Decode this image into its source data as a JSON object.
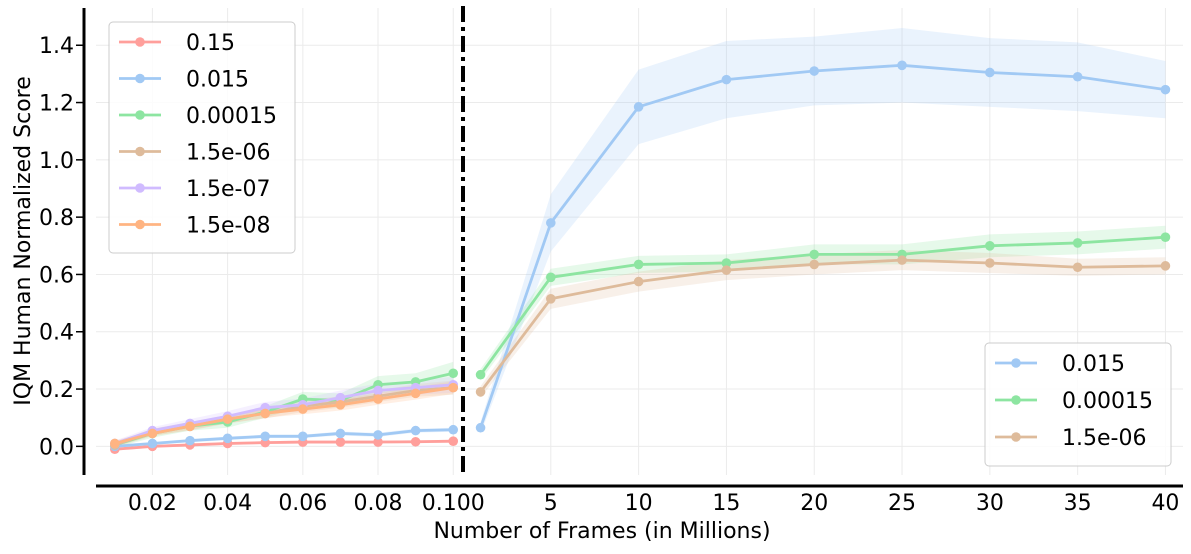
{
  "chart_data": {
    "type": "line",
    "ylabel": "IQM Human Normalized Score",
    "xlabel": "Number of Frames (in Millions)",
    "ylim": [
      -0.1,
      1.53
    ],
    "yticks": [
      "0.0",
      "0.2",
      "0.4",
      "0.6",
      "0.8",
      "1.0",
      "1.2",
      "1.4"
    ],
    "grid": true,
    "left_panel": {
      "xlim": [
        0.005,
        0.1026
      ],
      "xticks": [
        "0.02",
        "0.04",
        "0.06",
        "0.08",
        "0.100"
      ],
      "legend_position": "top-left",
      "series": [
        {
          "name": "0.15",
          "color": "#ff9f9b",
          "x": [
            0.01,
            0.02,
            0.03,
            0.04,
            0.05,
            0.06,
            0.07,
            0.08,
            0.09,
            0.1
          ],
          "y": [
            -0.01,
            0.0,
            0.005,
            0.01,
            0.013,
            0.015,
            0.015,
            0.015,
            0.016,
            0.018
          ],
          "band": [
            0.005,
            0.005,
            0.005,
            0.005,
            0.005,
            0.005,
            0.005,
            0.005,
            0.005,
            0.005
          ]
        },
        {
          "name": "0.015",
          "color": "#a1c9f4",
          "x": [
            0.01,
            0.02,
            0.03,
            0.04,
            0.05,
            0.06,
            0.07,
            0.08,
            0.09,
            0.1
          ],
          "y": [
            0.0,
            0.01,
            0.02,
            0.028,
            0.035,
            0.035,
            0.045,
            0.04,
            0.055,
            0.058
          ],
          "band": [
            0.005,
            0.005,
            0.006,
            0.006,
            0.006,
            0.006,
            0.007,
            0.007,
            0.007,
            0.007
          ]
        },
        {
          "name": "0.00015",
          "color": "#8de5a1",
          "x": [
            0.01,
            0.02,
            0.03,
            0.04,
            0.05,
            0.06,
            0.07,
            0.08,
            0.09,
            0.1
          ],
          "y": [
            0.005,
            0.045,
            0.07,
            0.085,
            0.12,
            0.165,
            0.16,
            0.215,
            0.225,
            0.255
          ],
          "band": [
            0.01,
            0.015,
            0.015,
            0.02,
            0.02,
            0.025,
            0.025,
            0.03,
            0.03,
            0.04
          ]
        },
        {
          "name": "1.5e-06",
          "color": "#debb9b",
          "x": [
            0.01,
            0.02,
            0.03,
            0.04,
            0.05,
            0.06,
            0.07,
            0.08,
            0.09,
            0.1
          ],
          "y": [
            0.005,
            0.05,
            0.07,
            0.095,
            0.115,
            0.14,
            0.155,
            0.175,
            0.195,
            0.205
          ],
          "band": [
            0.01,
            0.012,
            0.015,
            0.015,
            0.018,
            0.02,
            0.02,
            0.02,
            0.022,
            0.025
          ]
        },
        {
          "name": "1.5e-07",
          "color": "#d0bbff",
          "x": [
            0.01,
            0.02,
            0.03,
            0.04,
            0.05,
            0.06,
            0.07,
            0.08,
            0.09,
            0.1
          ],
          "y": [
            0.01,
            0.055,
            0.08,
            0.105,
            0.135,
            0.145,
            0.17,
            0.195,
            0.205,
            0.215
          ],
          "band": [
            0.01,
            0.012,
            0.015,
            0.018,
            0.02,
            0.022,
            0.025,
            0.025,
            0.025,
            0.028
          ]
        },
        {
          "name": "1.5e-08",
          "color": "#ffb482",
          "x": [
            0.01,
            0.02,
            0.03,
            0.04,
            0.05,
            0.06,
            0.07,
            0.08,
            0.09,
            0.1
          ],
          "y": [
            0.01,
            0.045,
            0.07,
            0.095,
            0.115,
            0.13,
            0.145,
            0.165,
            0.185,
            0.205
          ],
          "band": [
            0.01,
            0.01,
            0.012,
            0.015,
            0.015,
            0.018,
            0.02,
            0.02,
            0.022,
            0.022
          ]
        }
      ]
    },
    "right_panel": {
      "xlim": [
        0,
        41
      ],
      "xticks": [
        "5",
        "10",
        "15",
        "20",
        "25",
        "30",
        "35",
        "40"
      ],
      "legend_position": "bottom-right",
      "series": [
        {
          "name": "0.015",
          "color": "#a1c9f4",
          "x": [
            1,
            5,
            10,
            15,
            20,
            25,
            30,
            35,
            40
          ],
          "y": [
            0.065,
            0.78,
            1.185,
            1.28,
            1.31,
            1.33,
            1.305,
            1.29,
            1.245
          ],
          "band": [
            0.02,
            0.1,
            0.13,
            0.135,
            0.12,
            0.13,
            0.12,
            0.12,
            0.1
          ]
        },
        {
          "name": "0.00015",
          "color": "#8de5a1",
          "x": [
            1,
            5,
            10,
            15,
            20,
            25,
            30,
            35,
            40
          ],
          "y": [
            0.25,
            0.59,
            0.635,
            0.64,
            0.67,
            0.67,
            0.7,
            0.71,
            0.73
          ],
          "band": [
            0.02,
            0.03,
            0.03,
            0.03,
            0.035,
            0.035,
            0.04,
            0.04,
            0.04
          ]
        },
        {
          "name": "1.5e-06",
          "color": "#debb9b",
          "x": [
            1,
            5,
            10,
            15,
            20,
            25,
            30,
            35,
            40
          ],
          "y": [
            0.19,
            0.515,
            0.575,
            0.615,
            0.635,
            0.65,
            0.64,
            0.625,
            0.63
          ],
          "band": [
            0.02,
            0.035,
            0.035,
            0.035,
            0.035,
            0.035,
            0.035,
            0.03,
            0.03
          ]
        }
      ]
    }
  }
}
